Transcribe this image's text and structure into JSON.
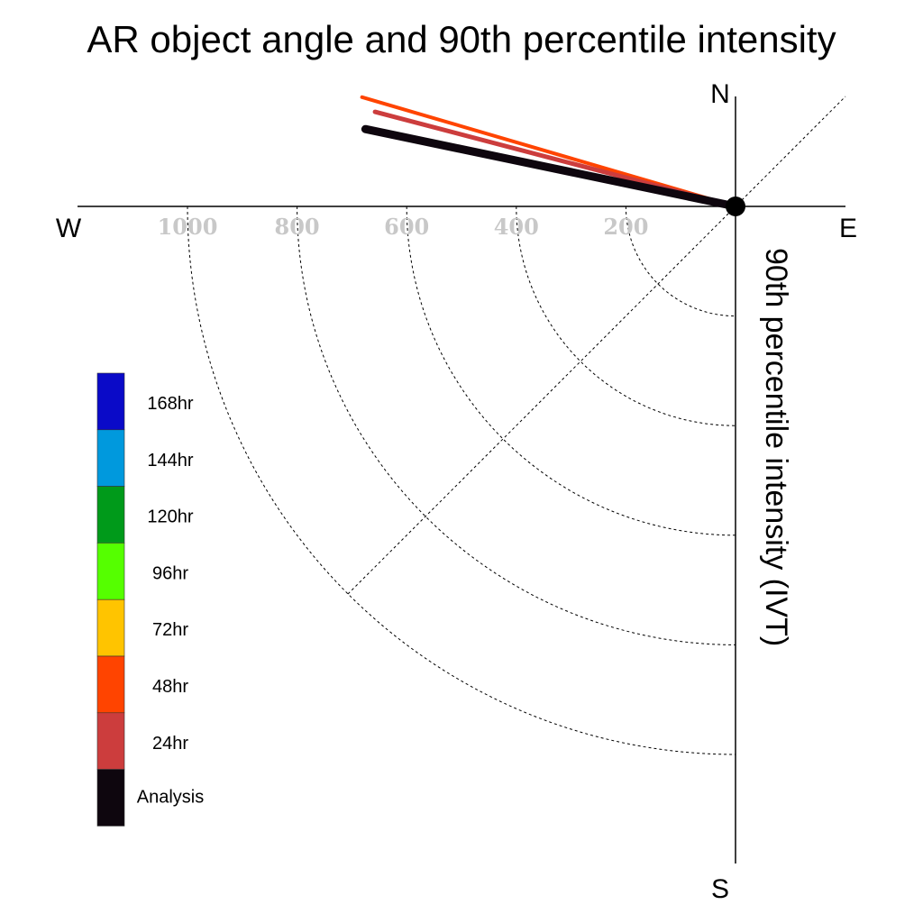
{
  "chart_data": {
    "type": "polar-vector",
    "title": "AR object angle and 90th percentile intensity",
    "ylabel": "90th percentile intensity (IVT)",
    "compass": {
      "north": "N",
      "east": "E",
      "south": "S",
      "west": "W"
    },
    "radial_range": [
      0,
      1200
    ],
    "radial_ticks": [
      200,
      400,
      600,
      800,
      1000
    ],
    "radial_tick_labels": [
      "200",
      "400",
      "600",
      "800",
      "1000"
    ],
    "grid": true,
    "legend_position": "left",
    "legend": [
      {
        "label": "168hr",
        "color": "#0a0ac8"
      },
      {
        "label": "144hr",
        "color": "#0099dd"
      },
      {
        "label": "120hr",
        "color": "#009a1a"
      },
      {
        "label": "96hr",
        "color": "#55ff00"
      },
      {
        "label": "72hr",
        "color": "#ffc400"
      },
      {
        "label": "48hr",
        "color": "#ff4400"
      },
      {
        "label": "24hr",
        "color": "#cc3d3d"
      },
      {
        "label": "Analysis",
        "color": "#0e060e"
      }
    ],
    "series": [
      {
        "name": "48hr",
        "angle_deg": 163.7,
        "intensity": 710,
        "color": "#ff4400"
      },
      {
        "name": "24hr",
        "angle_deg": 165.3,
        "intensity": 680,
        "color": "#cc3d3d"
      },
      {
        "name": "Analysis",
        "angle_deg": 168.2,
        "intensity": 690,
        "color": "#0e060e"
      }
    ]
  }
}
